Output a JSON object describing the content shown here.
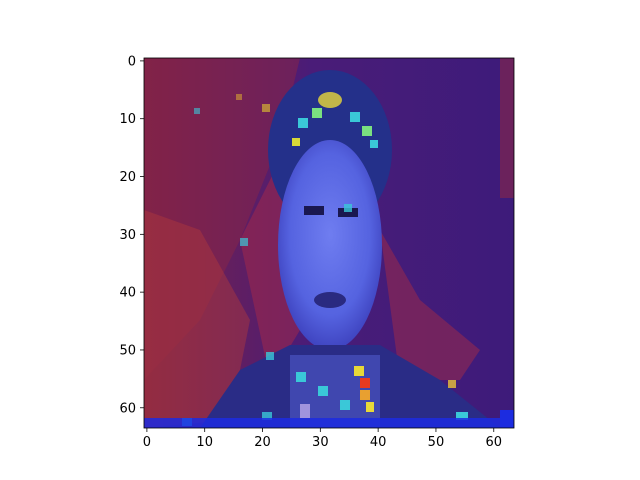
{
  "chart_data": {
    "type": "heatmap",
    "description_visible": "64x64 pixel image (low-resolution face photograph) with a jet-colormap saliency heatmap overlaid at partial opacity",
    "title": "",
    "xlabel": "",
    "ylabel": "",
    "xlim": [
      -0.5,
      63.5
    ],
    "ylim": [
      63.5,
      -0.5
    ],
    "x_ticks": [
      0,
      10,
      20,
      30,
      40,
      50,
      60
    ],
    "y_ticks": [
      0,
      10,
      20,
      30,
      40,
      50,
      60
    ],
    "grid": false,
    "legend": "none",
    "image_size": [
      64,
      64
    ],
    "colors": {
      "background_red": "#7a2347",
      "background_purple": "#3a1a7a",
      "face_blue": "#5a6ae8",
      "hot_cyan": "#3ac8d8",
      "hot_yellow": "#e8d838",
      "hot_red": "#e83a20",
      "border_blue": "#1c2ce0"
    }
  }
}
